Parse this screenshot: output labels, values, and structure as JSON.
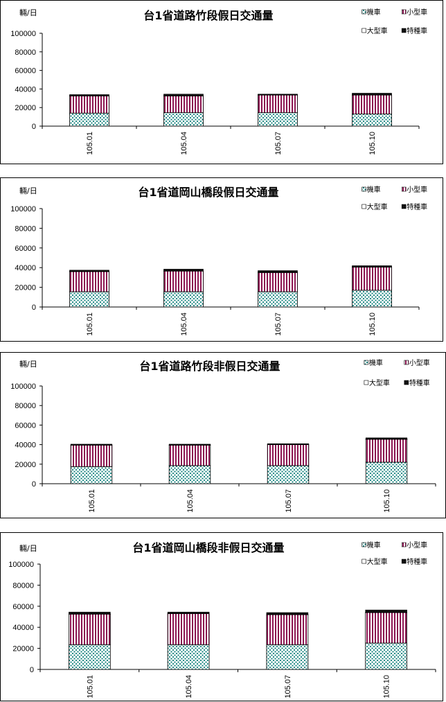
{
  "legend": {
    "motorcycle": "機車",
    "small_car": "小型車",
    "large_car": "大型車",
    "special": "特種車"
  },
  "colors": {
    "motorcycle_fill": "#ffffff",
    "motorcycle_dot": "#0f7f7a",
    "small_car_fill": "#ffffff",
    "small_car_stripe": "#8b1450",
    "large_car": "#ffffff",
    "special": "#111111"
  },
  "chart_data": [
    {
      "type": "bar",
      "stacked": true,
      "title": "台1省道路竹段假日交通量",
      "ylabel": "輛/日",
      "ylim": [
        0,
        100000
      ],
      "yticks": [
        "0",
        "20000",
        "40000",
        "60000",
        "80000",
        "100000"
      ],
      "categories": [
        "105.01",
        "105.04",
        "105.07",
        "105.10"
      ],
      "series": [
        {
          "name": "機車",
          "values": [
            14000,
            14500,
            14500,
            13000
          ]
        },
        {
          "name": "小型車",
          "values": [
            18500,
            18000,
            19000,
            20500
          ]
        },
        {
          "name": "大型車",
          "values": [
            300,
            300,
            300,
            300
          ]
        },
        {
          "name": "特種車",
          "values": [
            1200,
            1700,
            700,
            1700
          ]
        }
      ],
      "grid": false,
      "legend_position": "top-right"
    },
    {
      "type": "bar",
      "stacked": true,
      "title": "台1省道岡山橋段假日交通量",
      "ylabel": "輛/日",
      "ylim": [
        0,
        100000
      ],
      "yticks": [
        "0",
        "20000",
        "40000",
        "60000",
        "80000",
        "100000"
      ],
      "categories": [
        "105.01",
        "105.04",
        "105.07",
        "105.10"
      ],
      "series": [
        {
          "name": "機車",
          "values": [
            15500,
            15500,
            15500,
            17000
          ]
        },
        {
          "name": "小型車",
          "values": [
            20500,
            21000,
            19500,
            23500
          ]
        },
        {
          "name": "大型車",
          "values": [
            300,
            300,
            300,
            300
          ]
        },
        {
          "name": "特種車",
          "values": [
            1200,
            1700,
            1700,
            1200
          ]
        }
      ],
      "grid": false,
      "legend_position": "top-right"
    },
    {
      "type": "bar",
      "stacked": true,
      "title": "台1省道路竹段非假日交通量",
      "ylabel": "輛/日",
      "ylim": [
        0,
        100000
      ],
      "yticks": [
        "0",
        "20000",
        "40000",
        "60000",
        "80000",
        "100000"
      ],
      "categories": [
        "105.01",
        "105.04",
        "105.07",
        "105.10"
      ],
      "series": [
        {
          "name": "機車",
          "values": [
            17500,
            18500,
            18500,
            22000
          ]
        },
        {
          "name": "小型車",
          "values": [
            22000,
            21000,
            21500,
            23500
          ]
        },
        {
          "name": "大型車",
          "values": [
            300,
            300,
            300,
            300
          ]
        },
        {
          "name": "特種車",
          "values": [
            700,
            700,
            700,
            1200
          ]
        }
      ],
      "grid": false,
      "legend_position": "top-right"
    },
    {
      "type": "bar",
      "stacked": true,
      "title": "台1省道岡山橋段非假日交通量",
      "ylabel": "輛/日",
      "ylim": [
        0,
        100000
      ],
      "yticks": [
        "0",
        "20000",
        "40000",
        "60000",
        "80000",
        "100000"
      ],
      "categories": [
        "105.01",
        "105.04",
        "105.07",
        "105.10"
      ],
      "series": [
        {
          "name": "機車",
          "values": [
            23500,
            23500,
            23500,
            25000
          ]
        },
        {
          "name": "小型車",
          "values": [
            29000,
            29500,
            28500,
            29000
          ]
        },
        {
          "name": "大型車",
          "values": [
            300,
            300,
            300,
            300
          ]
        },
        {
          "name": "特種車",
          "values": [
            1700,
            1200,
            1700,
            2200
          ]
        }
      ],
      "grid": false,
      "legend_position": "top-right"
    }
  ]
}
